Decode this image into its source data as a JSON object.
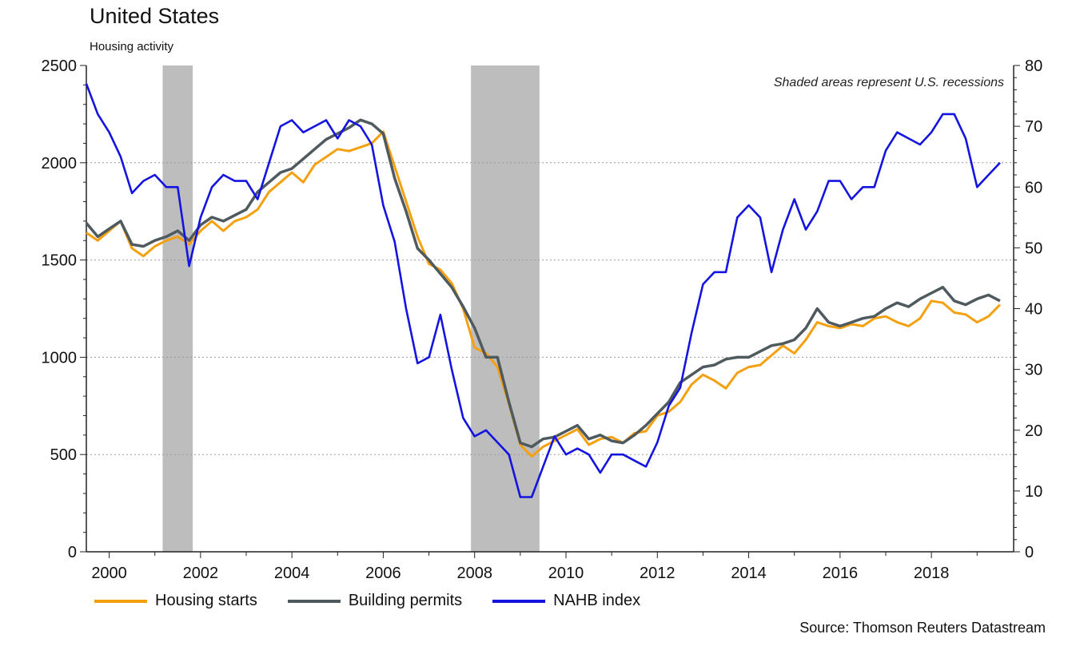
{
  "header": {
    "title": "United States",
    "subtitle": "Housing activity"
  },
  "source": "Source: Thomson Reuters Datastream",
  "colors": {
    "housing_starts": "#f5a00f",
    "building_permits": "#4f5a5f",
    "nahb_index": "#1414e0",
    "recession": "#bdbdbd",
    "grid": "#9a9a9a"
  },
  "chart_data": {
    "type": "line",
    "annotation": "Shaded areas represent U.S. recessions",
    "x_ticks": [
      "2000",
      "2002",
      "2004",
      "2006",
      "2008",
      "2010",
      "2012",
      "2014",
      "2016",
      "2018"
    ],
    "xlim": [
      1999.5,
      2019.8
    ],
    "ylim_left": [
      0,
      2500
    ],
    "yticks_left": [
      "0",
      "500",
      "1000",
      "1500",
      "2000",
      "2500"
    ],
    "ylim_right": [
      0,
      80
    ],
    "yticks_right": [
      "0",
      "10",
      "20",
      "30",
      "40",
      "50",
      "60",
      "70",
      "80"
    ],
    "grid": "horizontal dotted",
    "legend_position": "bottom",
    "recessions": [
      [
        2001.17,
        2001.83
      ],
      [
        2007.92,
        2009.42
      ]
    ],
    "series": [
      {
        "name": "Housing starts",
        "axis": "left",
        "x": [
          1999.5,
          1999.75,
          2000.0,
          2000.25,
          2000.5,
          2000.75,
          2001.0,
          2001.25,
          2001.5,
          2001.75,
          2002.0,
          2002.25,
          2002.5,
          2002.75,
          2003.0,
          2003.25,
          2003.5,
          2003.75,
          2004.0,
          2004.25,
          2004.5,
          2004.75,
          2005.0,
          2005.25,
          2005.5,
          2005.75,
          2006.0,
          2006.25,
          2006.5,
          2006.75,
          2007.0,
          2007.25,
          2007.5,
          2007.75,
          2008.0,
          2008.25,
          2008.5,
          2008.75,
          2009.0,
          2009.25,
          2009.5,
          2009.75,
          2010.0,
          2010.25,
          2010.5,
          2010.75,
          2011.0,
          2011.25,
          2011.5,
          2011.75,
          2012.0,
          2012.25,
          2012.5,
          2012.75,
          2013.0,
          2013.25,
          2013.5,
          2013.75,
          2014.0,
          2014.25,
          2014.5,
          2014.75,
          2015.0,
          2015.25,
          2015.5,
          2015.75,
          2016.0,
          2016.25,
          2016.5,
          2016.75,
          2017.0,
          2017.25,
          2017.5,
          2017.75,
          2018.0,
          2018.25,
          2018.5,
          2018.75,
          2019.0,
          2019.25,
          2019.5
        ],
        "values": [
          1640,
          1600,
          1650,
          1700,
          1560,
          1520,
          1570,
          1600,
          1620,
          1580,
          1650,
          1700,
          1650,
          1700,
          1720,
          1760,
          1850,
          1900,
          1950,
          1900,
          1990,
          2030,
          2070,
          2060,
          2080,
          2100,
          2160,
          1980,
          1800,
          1620,
          1480,
          1450,
          1380,
          1250,
          1050,
          1020,
          950,
          760,
          550,
          490,
          540,
          570,
          600,
          630,
          550,
          580,
          590,
          560,
          610,
          620,
          700,
          720,
          770,
          860,
          910,
          880,
          840,
          920,
          950,
          960,
          1010,
          1060,
          1020,
          1090,
          1180,
          1160,
          1150,
          1170,
          1160,
          1200,
          1210,
          1180,
          1160,
          1200,
          1290,
          1280,
          1230,
          1220,
          1180,
          1210,
          1270
        ]
      },
      {
        "name": "Building permits",
        "axis": "left",
        "x": [
          1999.5,
          1999.75,
          2000.0,
          2000.25,
          2000.5,
          2000.75,
          2001.0,
          2001.25,
          2001.5,
          2001.75,
          2002.0,
          2002.25,
          2002.5,
          2002.75,
          2003.0,
          2003.25,
          2003.5,
          2003.75,
          2004.0,
          2004.25,
          2004.5,
          2004.75,
          2005.0,
          2005.25,
          2005.5,
          2005.75,
          2006.0,
          2006.25,
          2006.5,
          2006.75,
          2007.0,
          2007.25,
          2007.5,
          2007.75,
          2008.0,
          2008.25,
          2008.5,
          2008.75,
          2009.0,
          2009.25,
          2009.5,
          2009.75,
          2010.0,
          2010.25,
          2010.5,
          2010.75,
          2011.0,
          2011.25,
          2011.5,
          2011.75,
          2012.0,
          2012.25,
          2012.5,
          2012.75,
          2013.0,
          2013.25,
          2013.5,
          2013.75,
          2014.0,
          2014.25,
          2014.5,
          2014.75,
          2015.0,
          2015.25,
          2015.5,
          2015.75,
          2016.0,
          2016.25,
          2016.5,
          2016.75,
          2017.0,
          2017.25,
          2017.5,
          2017.75,
          2018.0,
          2018.25,
          2018.5,
          2018.75,
          2019.0,
          2019.25,
          2019.5
        ],
        "values": [
          1690,
          1620,
          1660,
          1700,
          1580,
          1570,
          1600,
          1620,
          1650,
          1600,
          1680,
          1720,
          1700,
          1730,
          1760,
          1850,
          1900,
          1950,
          1970,
          2020,
          2070,
          2120,
          2150,
          2180,
          2220,
          2200,
          2150,
          1920,
          1750,
          1560,
          1500,
          1430,
          1360,
          1260,
          1150,
          1000,
          1000,
          770,
          560,
          540,
          580,
          590,
          620,
          650,
          580,
          600,
          570,
          560,
          600,
          650,
          710,
          770,
          870,
          910,
          950,
          960,
          990,
          1000,
          1000,
          1030,
          1060,
          1070,
          1090,
          1150,
          1250,
          1180,
          1160,
          1180,
          1200,
          1210,
          1250,
          1280,
          1260,
          1300,
          1330,
          1360,
          1290,
          1270,
          1300,
          1320,
          1290
        ]
      },
      {
        "name": "NAHB index",
        "axis": "right",
        "x": [
          1999.5,
          1999.75,
          2000.0,
          2000.25,
          2000.5,
          2000.75,
          2001.0,
          2001.25,
          2001.5,
          2001.75,
          2002.0,
          2002.25,
          2002.5,
          2002.75,
          2003.0,
          2003.25,
          2003.5,
          2003.75,
          2004.0,
          2004.25,
          2004.5,
          2004.75,
          2005.0,
          2005.25,
          2005.5,
          2005.75,
          2006.0,
          2006.25,
          2006.5,
          2006.75,
          2007.0,
          2007.25,
          2007.5,
          2007.75,
          2008.0,
          2008.25,
          2008.5,
          2008.75,
          2009.0,
          2009.25,
          2009.5,
          2009.75,
          2010.0,
          2010.25,
          2010.5,
          2010.75,
          2011.0,
          2011.25,
          2011.5,
          2011.75,
          2012.0,
          2012.25,
          2012.5,
          2012.75,
          2013.0,
          2013.25,
          2013.5,
          2013.75,
          2014.0,
          2014.25,
          2014.5,
          2014.75,
          2015.0,
          2015.25,
          2015.5,
          2015.75,
          2016.0,
          2016.25,
          2016.5,
          2016.75,
          2017.0,
          2017.25,
          2017.5,
          2017.75,
          2018.0,
          2018.25,
          2018.5,
          2018.75,
          2019.0,
          2019.25,
          2019.5
        ],
        "values": [
          77,
          72,
          69,
          65,
          59,
          61,
          62,
          60,
          60,
          47,
          55,
          60,
          62,
          61,
          61,
          58,
          64,
          70,
          71,
          69,
          70,
          71,
          68,
          71,
          70,
          67,
          57,
          51,
          40,
          31,
          32,
          39,
          30,
          22,
          19,
          20,
          18,
          16,
          9,
          9,
          14,
          19,
          16,
          17,
          16,
          13,
          16,
          16,
          15,
          14,
          18,
          24,
          27,
          36,
          44,
          46,
          46,
          55,
          57,
          55,
          46,
          53,
          58,
          53,
          56,
          61,
          61,
          58,
          60,
          60,
          66,
          69,
          68,
          67,
          69,
          72,
          72,
          68,
          60,
          62,
          64
        ]
      }
    ]
  }
}
